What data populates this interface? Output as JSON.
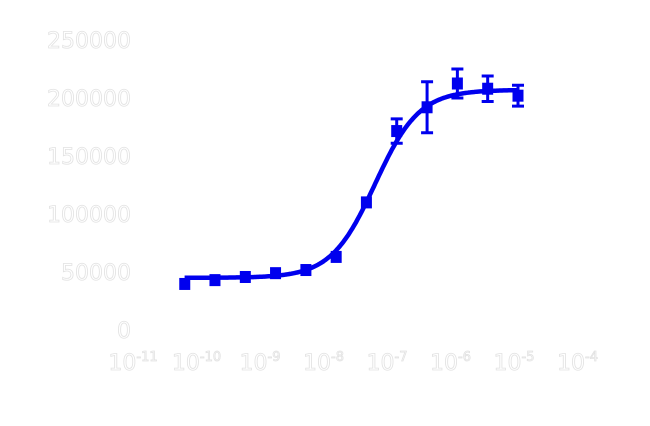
{
  "chart_data": {
    "type": "scatter",
    "title": "",
    "xlabel": "",
    "ylabel": "",
    "x_scale": "log",
    "xlim_log10": [
      -11,
      -4
    ],
    "ylim": [
      0,
      250000
    ],
    "grid": false,
    "x_tick_labels": [
      {
        "base": "10",
        "exp": "-11"
      },
      {
        "base": "10",
        "exp": "-10"
      },
      {
        "base": "10",
        "exp": "-9"
      },
      {
        "base": "10",
        "exp": "-8"
      },
      {
        "base": "10",
        "exp": "-7"
      },
      {
        "base": "10",
        "exp": "-6"
      },
      {
        "base": "10",
        "exp": "-5"
      },
      {
        "base": "10",
        "exp": "-4"
      }
    ],
    "y_tick_labels": [
      "0",
      "50000",
      "100000",
      "150000",
      "200000",
      "250000"
    ],
    "series_color": "#0000ee",
    "text_color": "#ffffff",
    "x": [
      5.65e-11,
      1.69e-10,
      5.08e-10,
      1.52e-09,
      4.57e-09,
      1.37e-08,
      4.1e-08,
      1.23e-07,
      3.7e-07,
      1.11e-06,
      3.33e-06,
      1e-05
    ],
    "y": [
      39700,
      43000,
      45700,
      49000,
      51700,
      63000,
      110000,
      171500,
      192000,
      212500,
      208000,
      202000
    ],
    "y_error": [
      0,
      0,
      0,
      0,
      0,
      0,
      0,
      10500,
      22000,
      12500,
      11000,
      9000
    ],
    "fit": {
      "model": "4PL",
      "bottom": 45000,
      "top": 207000,
      "log_ec50": -7.25,
      "hill": 1.25
    }
  }
}
